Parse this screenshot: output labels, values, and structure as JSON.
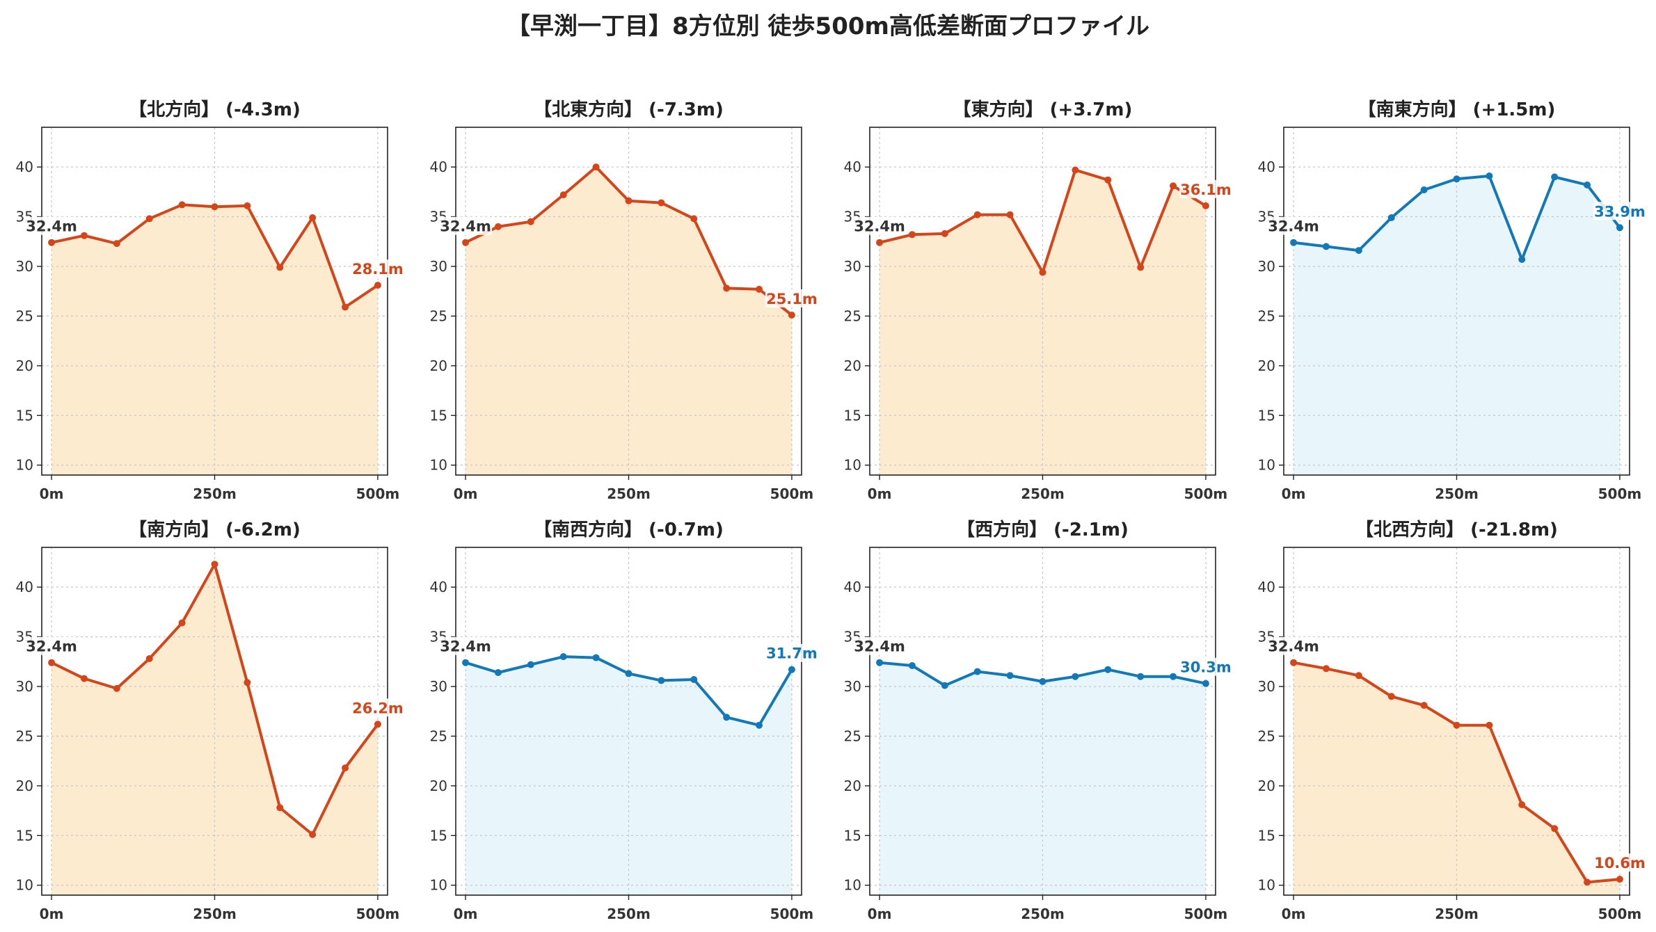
{
  "title": "【早渕一丁目】8方位別 徒歩500m高低差断面プロファイル",
  "colors": {
    "down_line": "#d4451a",
    "down_fill": "#fdebd0",
    "up_line": "#1278b8",
    "up_fill": "#e8f5fb",
    "grid": "#c8c8c8"
  },
  "chart_data": [
    {
      "type": "line",
      "title": "【北方向】 (-4.3m)",
      "trend": "down",
      "x": [
        0,
        50,
        100,
        150,
        200,
        250,
        300,
        350,
        400,
        450,
        500
      ],
      "y": [
        32.4,
        33.1,
        32.3,
        34.8,
        36.2,
        36.0,
        36.1,
        29.9,
        34.9,
        25.9,
        28.1
      ],
      "start_label": "32.4m",
      "end_label": "28.1m",
      "xticks": [
        "0m",
        "250m",
        "500m"
      ],
      "yticks": [
        10,
        15,
        20,
        25,
        30,
        35,
        40
      ],
      "xlim": [
        -15,
        515
      ],
      "ylim": [
        9,
        44
      ],
      "grid": true
    },
    {
      "type": "line",
      "title": "【北東方向】 (-7.3m)",
      "trend": "down",
      "x": [
        0,
        50,
        100,
        150,
        200,
        250,
        300,
        350,
        400,
        450,
        500
      ],
      "y": [
        32.4,
        34.0,
        34.5,
        37.2,
        40.0,
        36.6,
        36.4,
        34.8,
        27.8,
        27.7,
        25.1
      ],
      "start_label": "32.4m",
      "end_label": "25.1m",
      "xticks": [
        "0m",
        "250m",
        "500m"
      ],
      "yticks": [
        10,
        15,
        20,
        25,
        30,
        35,
        40
      ],
      "xlim": [
        -15,
        515
      ],
      "ylim": [
        9,
        44
      ],
      "grid": true
    },
    {
      "type": "line",
      "title": "【東方向】 (+3.7m)",
      "trend": "down",
      "x": [
        0,
        50,
        100,
        150,
        200,
        250,
        300,
        350,
        400,
        450,
        500
      ],
      "y": [
        32.4,
        33.2,
        33.3,
        35.2,
        35.2,
        29.4,
        39.7,
        38.7,
        29.9,
        38.1,
        36.1
      ],
      "start_label": "32.4m",
      "end_label": "36.1m",
      "xticks": [
        "0m",
        "250m",
        "500m"
      ],
      "yticks": [
        10,
        15,
        20,
        25,
        30,
        35,
        40
      ],
      "xlim": [
        -15,
        515
      ],
      "ylim": [
        9,
        44
      ],
      "grid": true
    },
    {
      "type": "line",
      "title": "【南東方向】 (+1.5m)",
      "trend": "up",
      "x": [
        0,
        50,
        100,
        150,
        200,
        250,
        300,
        350,
        400,
        450,
        500
      ],
      "y": [
        32.4,
        32.0,
        31.6,
        34.9,
        37.7,
        38.8,
        39.1,
        30.7,
        39.0,
        38.2,
        33.9
      ],
      "start_label": "32.4m",
      "end_label": "33.9m",
      "xticks": [
        "0m",
        "250m",
        "500m"
      ],
      "yticks": [
        10,
        15,
        20,
        25,
        30,
        35,
        40
      ],
      "xlim": [
        -15,
        515
      ],
      "ylim": [
        9,
        44
      ],
      "grid": true
    },
    {
      "type": "line",
      "title": "【南方向】 (-6.2m)",
      "trend": "down",
      "x": [
        0,
        50,
        100,
        150,
        200,
        250,
        300,
        350,
        400,
        450,
        500
      ],
      "y": [
        32.4,
        30.8,
        29.8,
        32.8,
        36.4,
        42.3,
        30.4,
        17.8,
        15.1,
        21.8,
        26.2
      ],
      "start_label": "32.4m",
      "end_label": "26.2m",
      "xticks": [
        "0m",
        "250m",
        "500m"
      ],
      "yticks": [
        10,
        15,
        20,
        25,
        30,
        35,
        40
      ],
      "xlim": [
        -15,
        515
      ],
      "ylim": [
        9,
        44
      ],
      "grid": true
    },
    {
      "type": "line",
      "title": "【南西方向】 (-0.7m)",
      "trend": "up",
      "x": [
        0,
        50,
        100,
        150,
        200,
        250,
        300,
        350,
        400,
        450,
        500
      ],
      "y": [
        32.4,
        31.4,
        32.2,
        33.0,
        32.9,
        31.3,
        30.6,
        30.7,
        26.9,
        26.1,
        31.7
      ],
      "start_label": "32.4m",
      "end_label": "31.7m",
      "xticks": [
        "0m",
        "250m",
        "500m"
      ],
      "yticks": [
        10,
        15,
        20,
        25,
        30,
        35,
        40
      ],
      "xlim": [
        -15,
        515
      ],
      "ylim": [
        9,
        44
      ],
      "grid": true
    },
    {
      "type": "line",
      "title": "【西方向】 (-2.1m)",
      "trend": "up",
      "x": [
        0,
        50,
        100,
        150,
        200,
        250,
        300,
        350,
        400,
        450,
        500
      ],
      "y": [
        32.4,
        32.1,
        30.1,
        31.5,
        31.1,
        30.5,
        31.0,
        31.7,
        31.0,
        31.0,
        30.3
      ],
      "start_label": "32.4m",
      "end_label": "30.3m",
      "xticks": [
        "0m",
        "250m",
        "500m"
      ],
      "yticks": [
        10,
        15,
        20,
        25,
        30,
        35,
        40
      ],
      "xlim": [
        -15,
        515
      ],
      "ylim": [
        9,
        44
      ],
      "grid": true
    },
    {
      "type": "line",
      "title": "【北西方向】 (-21.8m)",
      "trend": "down",
      "x": [
        0,
        50,
        100,
        150,
        200,
        250,
        300,
        350,
        400,
        450,
        500
      ],
      "y": [
        32.4,
        31.8,
        31.1,
        29.0,
        28.1,
        26.1,
        26.1,
        18.1,
        15.7,
        10.3,
        10.6
      ],
      "start_label": "32.4m",
      "end_label": "10.6m",
      "xticks": [
        "0m",
        "250m",
        "500m"
      ],
      "yticks": [
        10,
        15,
        20,
        25,
        30,
        35,
        40
      ],
      "xlim": [
        -15,
        515
      ],
      "ylim": [
        9,
        44
      ],
      "grid": true
    }
  ]
}
